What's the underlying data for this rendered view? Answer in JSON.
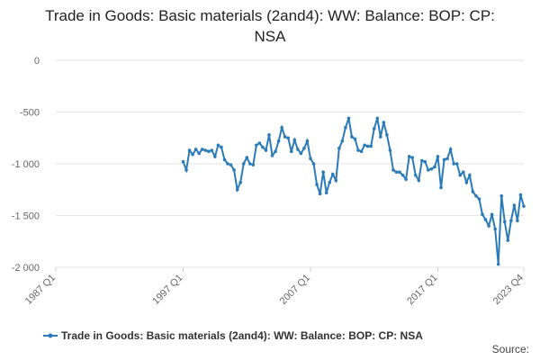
{
  "chart_data": {
    "type": "line",
    "title": "Trade in Goods: Basic materials (2and4): WW: Balance: BOP: CP: NSA",
    "source": "Source:",
    "categories": [
      "1987 Q1",
      null,
      null,
      null,
      null,
      null,
      null,
      null,
      null,
      null,
      null,
      null,
      null,
      null,
      null,
      null,
      null,
      null,
      null,
      null,
      null,
      null,
      null,
      null,
      null,
      null,
      null,
      null,
      null,
      null,
      null,
      null,
      null,
      null,
      null,
      null,
      null,
      null,
      null,
      null,
      "1997 Q1",
      null,
      null,
      null,
      null,
      null,
      null,
      null,
      null,
      null,
      null,
      null,
      null,
      null,
      null,
      null,
      null,
      null,
      null,
      null,
      null,
      null,
      null,
      null,
      null,
      null,
      null,
      null,
      null,
      null,
      null,
      null,
      null,
      null,
      null,
      null,
      null,
      null,
      null,
      null,
      "2007 Q1",
      null,
      null,
      null,
      null,
      null,
      null,
      null,
      null,
      null,
      null,
      null,
      null,
      null,
      null,
      null,
      null,
      null,
      null,
      null,
      null,
      null,
      null,
      null,
      null,
      null,
      null,
      null,
      null,
      null,
      null,
      null,
      null,
      null,
      null,
      null,
      null,
      null,
      null,
      null,
      "2017 Q1",
      null,
      null,
      null,
      null,
      null,
      null,
      null,
      null,
      null,
      null,
      null,
      null,
      null,
      null,
      null,
      null,
      null,
      null,
      null,
      null,
      null,
      null,
      null,
      null,
      null,
      null,
      "2023 Q4"
    ],
    "series": [
      {
        "name": "Trade in Goods: Basic materials (2and4): WW: Balance: BOP: CP: NSA",
        "color": "#2b7bb9",
        "values": [
          null,
          null,
          null,
          null,
          null,
          null,
          null,
          null,
          null,
          null,
          null,
          null,
          null,
          null,
          null,
          null,
          null,
          null,
          null,
          null,
          null,
          null,
          null,
          null,
          null,
          null,
          null,
          null,
          null,
          null,
          null,
          null,
          null,
          null,
          null,
          null,
          null,
          null,
          null,
          null,
          -980,
          -1060,
          -870,
          -910,
          -860,
          -900,
          -860,
          -870,
          -880,
          -870,
          -930,
          -820,
          -840,
          -960,
          -1000,
          -1010,
          -1060,
          -1250,
          -1180,
          -1000,
          -940,
          -1000,
          -1010,
          -820,
          -800,
          -840,
          -870,
          -720,
          -920,
          -880,
          -780,
          -650,
          -740,
          -750,
          -880,
          -770,
          -860,
          -900,
          -850,
          -780,
          -950,
          -1000,
          -1200,
          -1290,
          -1080,
          -1280,
          -1180,
          -1100,
          -1160,
          -850,
          -780,
          -650,
          -560,
          -740,
          -760,
          -870,
          -880,
          -820,
          -830,
          -830,
          -660,
          -560,
          -740,
          -600,
          -720,
          -870,
          -1060,
          -1080,
          -1080,
          -1110,
          -1150,
          -930,
          -940,
          -1110,
          -1160,
          -970,
          -980,
          -1060,
          -1050,
          -1030,
          -930,
          -1230,
          -960,
          -950,
          -860,
          -1000,
          -1000,
          -1110,
          -1080,
          -1180,
          -1110,
          -1270,
          -1310,
          -1340,
          -1490,
          -1540,
          -1600,
          -1490,
          -1630,
          -1970,
          -1310,
          -1560,
          -1740,
          -1550,
          -1400,
          -1550,
          -1300,
          -1410
        ]
      }
    ],
    "ylim": [
      -2000,
      0
    ],
    "yticks": [
      {
        "value": -2000,
        "label": "-2 000"
      },
      {
        "value": -1500,
        "label": "-1 500"
      },
      {
        "value": -1000,
        "label": "-1 000"
      },
      {
        "value": -500,
        "label": "-500"
      },
      0
    ],
    "grid": true
  }
}
